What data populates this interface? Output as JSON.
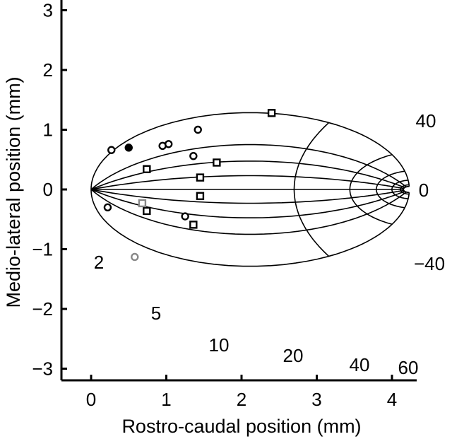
{
  "chart_data": {
    "type": "scatter",
    "xlabel": "Rostro-caudal position (mm)",
    "ylabel": "Medio-lateral position (mm)",
    "xlim": [
      -0.4,
      4.5
    ],
    "ylim": [
      -3.2,
      3.2
    ],
    "xticks": [
      0,
      1,
      2,
      3,
      4
    ],
    "yticks": [
      3,
      2,
      1,
      0,
      -1,
      -2,
      -3
    ],
    "grid": false,
    "polar_grid": {
      "eccentricity_labels": [
        "2",
        "5",
        "10",
        "20",
        "40",
        "60"
      ],
      "angle_labels": [
        "40",
        "0",
        "−40"
      ]
    },
    "series": [
      {
        "marker": "circle-open",
        "color": "#000000",
        "points": [
          [
            0.27,
            0.66
          ],
          [
            0.95,
            0.73
          ],
          [
            1.03,
            0.76
          ],
          [
            1.42,
            1.0
          ],
          [
            1.36,
            0.56
          ],
          [
            0.22,
            -0.3
          ],
          [
            1.25,
            -0.45
          ]
        ]
      },
      {
        "marker": "circle-filled",
        "color": "#000000",
        "points": [
          [
            0.5,
            0.7
          ]
        ]
      },
      {
        "marker": "circle-open",
        "color": "#888888",
        "points": [
          [
            0.58,
            -1.13
          ]
        ]
      },
      {
        "marker": "square-open",
        "color": "#000000",
        "points": [
          [
            0.74,
            0.34
          ],
          [
            1.45,
            0.2
          ],
          [
            1.67,
            0.45
          ],
          [
            2.4,
            1.28
          ],
          [
            1.45,
            -0.11
          ],
          [
            0.74,
            -0.36
          ],
          [
            1.36,
            -0.59
          ]
        ]
      },
      {
        "marker": "square-open",
        "color": "#888888",
        "points": [
          [
            0.68,
            -0.23
          ]
        ]
      }
    ]
  }
}
